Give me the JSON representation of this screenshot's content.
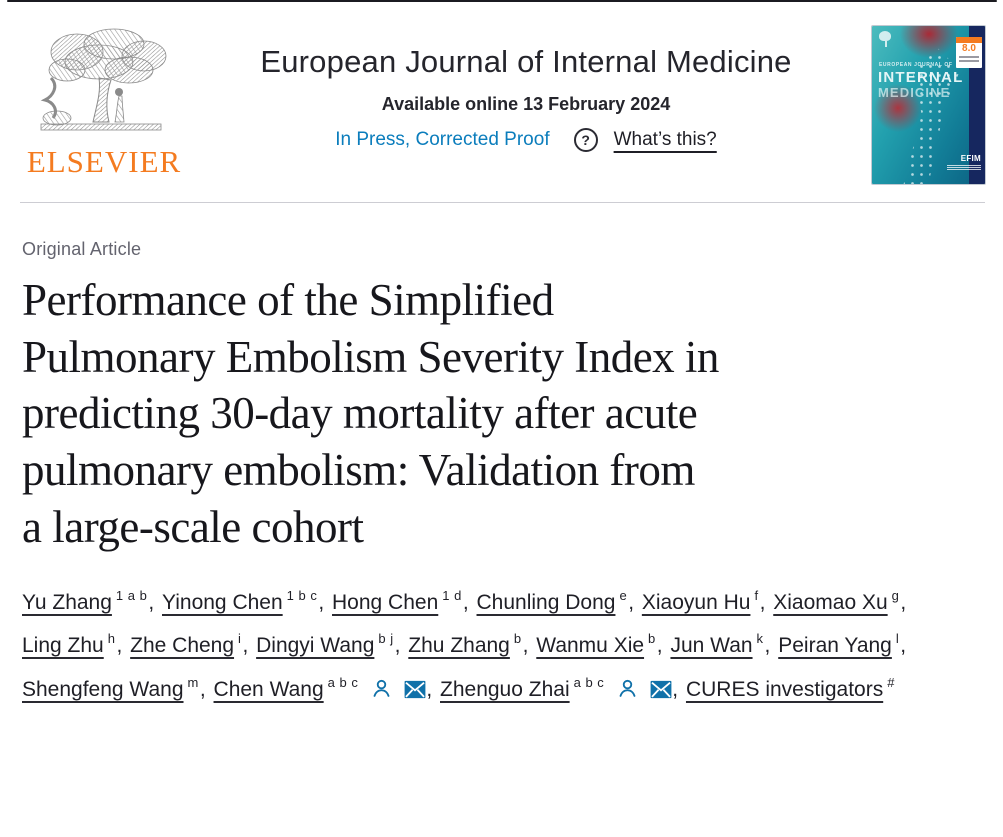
{
  "colors": {
    "link_blue": "#0b7dbc",
    "elsevier_orange": "#f47b20",
    "text_dark": "#1f1f26",
    "muted_gray": "#63636e",
    "divider_gray": "#cdcdd3",
    "cover_teal": "#1d93a8",
    "cover_navy": "#16275f"
  },
  "header": {
    "publisher_wordmark": "ELSEVIER",
    "journal_title": "European Journal of Internal Medicine",
    "available_online": "Available online 13 February 2024",
    "in_press_label": "In Press, Corrected Proof",
    "question_icon_glyph": "?",
    "whats_this_label": "What’s this?",
    "cover": {
      "kicker": "EUROPEAN JOURNAL OF",
      "title_line1": "INTERNAL",
      "title_line2": "MEDICINE",
      "impact_badge_value": "8.0",
      "efim_label": "EFIM"
    }
  },
  "article": {
    "type_label": "Original Article",
    "title": "Performance of the Simplified Pulmonary Embolism Severity Index in predicting 30-day mortality after acute pulmonary embolism: Validation from a large-scale cohort",
    "title_lines": [
      "Performance of the Simplified",
      "Pulmonary Embolism Severity Index in",
      "predicting 30-day mortality after acute",
      "pulmonary embolism: Validation from",
      "a large-scale cohort"
    ],
    "authors": [
      {
        "name": "Yu Zhang",
        "sup": "1 a b"
      },
      {
        "name": "Yinong Chen",
        "sup": "1 b c"
      },
      {
        "name": "Hong Chen",
        "sup": "1 d"
      },
      {
        "name": "Chunling Dong",
        "sup": "e"
      },
      {
        "name": "Xiaoyun Hu",
        "sup": "f"
      },
      {
        "name": "Xiaomao Xu",
        "sup": "g"
      },
      {
        "name": "Ling Zhu",
        "sup": "h"
      },
      {
        "name": "Zhe Cheng",
        "sup": "i"
      },
      {
        "name": "Dingyi Wang",
        "sup": "b j"
      },
      {
        "name": "Zhu Zhang",
        "sup": "b"
      },
      {
        "name": "Wanmu Xie",
        "sup": "b"
      },
      {
        "name": "Jun Wan",
        "sup": "k"
      },
      {
        "name": "Peiran Yang",
        "sup": "l"
      },
      {
        "name": "Shengfeng Wang",
        "sup": "m"
      },
      {
        "name": "Chen Wang",
        "sup": "a b c",
        "icons": [
          "person",
          "envelope"
        ]
      },
      {
        "name": "Zhenguo Zhai",
        "sup": "a b c",
        "icons": [
          "person",
          "envelope"
        ]
      },
      {
        "name": "CURES investigators",
        "sup": "#"
      }
    ]
  }
}
